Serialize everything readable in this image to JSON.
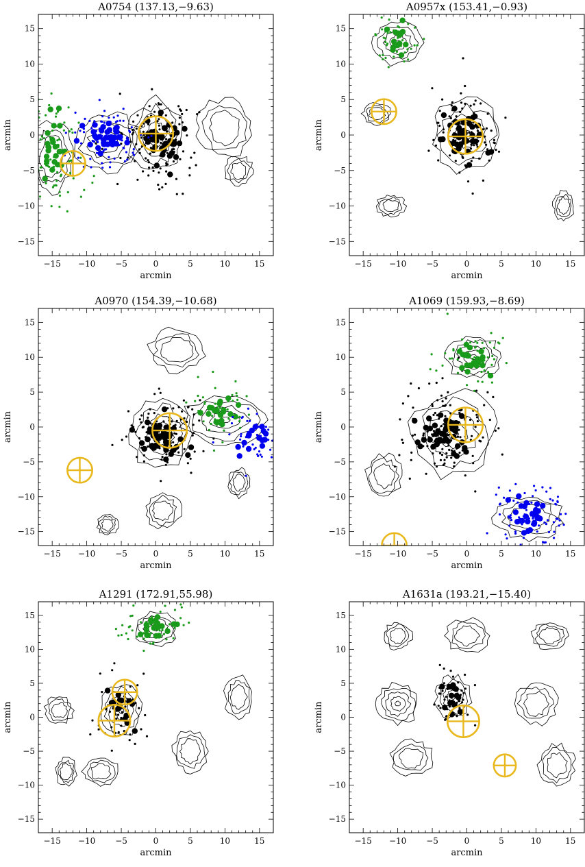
{
  "figure": {
    "x_label": "arcmin",
    "y_label": "arcmin",
    "colors": {
      "main": "#000000",
      "green": "#1a9a1a",
      "blue": "#0000ee",
      "marker": "#e8b81c",
      "contour": "#000000"
    }
  },
  "chart_data": [
    {
      "type": "scatter",
      "title": "A0754",
      "coords": "(137.13,−9.63)",
      "xlabel": "arcmin",
      "ylabel": "arcmin",
      "xlim": [
        -17,
        17
      ],
      "ylim": [
        -17,
        17
      ],
      "xticks": [
        -15,
        -10,
        -5,
        0,
        5,
        10,
        15
      ],
      "yticks": [
        -15,
        -10,
        -5,
        0,
        5,
        10,
        15
      ],
      "series": [
        {
          "color": "black",
          "center": [
            1,
            -1
          ],
          "spread": [
            3.0,
            3.2
          ],
          "count_small": 120,
          "count_big": 40
        },
        {
          "color": "blue",
          "center": [
            -7,
            -0.5
          ],
          "spread": [
            2.5,
            2.0
          ],
          "count_small": 90,
          "count_big": 35
        },
        {
          "color": "green",
          "center": [
            -15,
            -3
          ],
          "spread": [
            2.0,
            4.0
          ],
          "count_small": 80,
          "count_big": 25
        }
      ],
      "markers": [
        {
          "x": 0,
          "y": 0.2,
          "r": 2.5
        },
        {
          "x": -12,
          "y": -4,
          "r": 1.8
        }
      ],
      "contour_blobs": [
        {
          "x": 0,
          "y": 0,
          "rx": 4,
          "ry": 5
        },
        {
          "x": -7,
          "y": -1,
          "rx": 5,
          "ry": 4
        },
        {
          "x": -15,
          "y": -3,
          "rx": 3,
          "ry": 5
        },
        {
          "x": 10,
          "y": 1,
          "rx": 4,
          "ry": 4
        },
        {
          "x": 12,
          "y": -5,
          "rx": 2,
          "ry": 2
        }
      ]
    },
    {
      "type": "scatter",
      "title": "A0957x",
      "coords": "(153.41,−0.93)",
      "xlabel": "arcmin",
      "ylabel": "arcmin",
      "xlim": [
        -17,
        17
      ],
      "ylim": [
        -17,
        17
      ],
      "xticks": [
        -15,
        -10,
        -5,
        0,
        5,
        10,
        15
      ],
      "yticks": [
        -15,
        -10,
        -5,
        0,
        5,
        10,
        15
      ],
      "series": [
        {
          "color": "black",
          "center": [
            0,
            0
          ],
          "spread": [
            2.8,
            3.0
          ],
          "count_small": 110,
          "count_big": 40
        },
        {
          "color": "green",
          "center": [
            -10,
            13
          ],
          "spread": [
            2.0,
            2.0
          ],
          "count_small": 45,
          "count_big": 15
        }
      ],
      "markers": [
        {
          "x": -0.2,
          "y": -0.2,
          "r": 2.5
        },
        {
          "x": -12,
          "y": 3.3,
          "r": 1.8
        }
      ],
      "contour_blobs": [
        {
          "x": 0,
          "y": 0,
          "rx": 5,
          "ry": 5
        },
        {
          "x": -10,
          "y": 13,
          "rx": 3.5,
          "ry": 3
        },
        {
          "x": -13,
          "y": 3,
          "rx": 2,
          "ry": 1.5
        },
        {
          "x": -11,
          "y": -10,
          "rx": 2,
          "ry": 1.5
        },
        {
          "x": 14,
          "y": -10,
          "rx": 1.5,
          "ry": 2
        }
      ]
    },
    {
      "type": "scatter",
      "title": "A0970",
      "coords": "(154.39,−10.68)",
      "xlabel": "arcmin",
      "ylabel": "arcmin",
      "xlim": [
        -17,
        17
      ],
      "ylim": [
        -17,
        17
      ],
      "xticks": [
        -15,
        -10,
        -5,
        0,
        5,
        10,
        15
      ],
      "yticks": [
        -15,
        -10,
        -5,
        0,
        5,
        10,
        15
      ],
      "series": [
        {
          "color": "black",
          "center": [
            1,
            -1
          ],
          "spread": [
            2.8,
            2.8
          ],
          "count_small": 110,
          "count_big": 45
        },
        {
          "color": "green",
          "center": [
            9,
            2
          ],
          "spread": [
            2.5,
            2.0
          ],
          "count_small": 50,
          "count_big": 20
        },
        {
          "color": "blue",
          "center": [
            14,
            -1.5
          ],
          "spread": [
            2.0,
            2.0
          ],
          "count_small": 45,
          "count_big": 15
        }
      ],
      "markers": [
        {
          "x": 2,
          "y": -0.5,
          "r": 2.5
        },
        {
          "x": -11,
          "y": -6.2,
          "r": 1.8
        }
      ],
      "contour_blobs": [
        {
          "x": 1,
          "y": -1,
          "rx": 4.5,
          "ry": 5
        },
        {
          "x": 10,
          "y": 1,
          "rx": 6,
          "ry": 3.5
        },
        {
          "x": 3,
          "y": 11,
          "rx": 4,
          "ry": 3
        },
        {
          "x": 1,
          "y": -12,
          "rx": 2.5,
          "ry": 2.5
        },
        {
          "x": -7,
          "y": -14,
          "rx": 1.5,
          "ry": 1.5
        },
        {
          "x": 12,
          "y": -8,
          "rx": 1.5,
          "ry": 2
        }
      ]
    },
    {
      "type": "scatter",
      "title": "A1069",
      "coords": "(159.93,−8.69)",
      "xlabel": "arcmin",
      "ylabel": "arcmin",
      "xlim": [
        -17,
        17
      ],
      "ylim": [
        -17,
        17
      ],
      "xticks": [
        -15,
        -10,
        -5,
        0,
        5,
        10,
        15
      ],
      "yticks": [
        -15,
        -10,
        -5,
        0,
        5,
        10,
        15
      ],
      "series": [
        {
          "color": "black",
          "center": [
            -3,
            -1
          ],
          "spread": [
            3.0,
            3.0
          ],
          "count_small": 140,
          "count_big": 45
        },
        {
          "color": "green",
          "center": [
            1,
            9.5
          ],
          "spread": [
            2.5,
            2.0
          ],
          "count_small": 60,
          "count_big": 25
        },
        {
          "color": "blue",
          "center": [
            9,
            -13
          ],
          "spread": [
            3.0,
            2.2
          ],
          "count_small": 80,
          "count_big": 25
        }
      ],
      "markers": [
        {
          "x": -0.2,
          "y": 0.3,
          "r": 2.5
        },
        {
          "x": -10.5,
          "y": -17,
          "r": 1.8
        }
      ],
      "contour_blobs": [
        {
          "x": -2,
          "y": -1,
          "rx": 6,
          "ry": 6
        },
        {
          "x": 1,
          "y": 10,
          "rx": 4,
          "ry": 3
        },
        {
          "x": 9,
          "y": -13,
          "rx": 5,
          "ry": 3
        },
        {
          "x": -12,
          "y": -7,
          "rx": 2.5,
          "ry": 3
        }
      ]
    },
    {
      "type": "scatter",
      "title": "A1291",
      "coords": "(172.91,55.98)",
      "xlabel": "arcmin",
      "ylabel": "arcmin",
      "xlim": [
        -17,
        17
      ],
      "ylim": [
        -17,
        17
      ],
      "xticks": [
        -15,
        -10,
        -5,
        0,
        5,
        10,
        15
      ],
      "yticks": [
        -15,
        -10,
        -5,
        0,
        5,
        10,
        15
      ],
      "series": [
        {
          "color": "black",
          "center": [
            -5,
            1
          ],
          "spread": [
            2.0,
            3.0
          ],
          "count_small": 55,
          "count_big": 15
        },
        {
          "color": "green",
          "center": [
            0,
            13.5
          ],
          "spread": [
            2.5,
            1.5
          ],
          "count_small": 55,
          "count_big": 20
        }
      ],
      "markers": [
        {
          "x": -4.5,
          "y": 3.7,
          "r": 1.8
        },
        {
          "x": -6,
          "y": -0.5,
          "r": 2.3
        }
      ],
      "contour_blobs": [
        {
          "x": -5,
          "y": 1,
          "rx": 3,
          "ry": 4
        },
        {
          "x": 0,
          "y": 13,
          "rx": 3,
          "ry": 2.5
        },
        {
          "x": -14,
          "y": 1,
          "rx": 2,
          "ry": 2
        },
        {
          "x": -8,
          "y": -8,
          "rx": 2.5,
          "ry": 2
        },
        {
          "x": 5,
          "y": -5,
          "rx": 2.5,
          "ry": 3
        },
        {
          "x": 12,
          "y": 3,
          "rx": 2,
          "ry": 3
        },
        {
          "x": -13,
          "y": -8,
          "rx": 1.5,
          "ry": 2
        }
      ]
    },
    {
      "type": "scatter",
      "title": "A1631a",
      "coords": "(193.21,−15.40)",
      "xlabel": "arcmin",
      "ylabel": "arcmin",
      "xlim": [
        -17,
        17
      ],
      "ylim": [
        -17,
        17
      ],
      "xticks": [
        -15,
        -10,
        -5,
        0,
        5,
        10,
        15
      ],
      "yticks": [
        -15,
        -10,
        -5,
        0,
        5,
        10,
        15
      ],
      "series": [
        {
          "color": "black",
          "center": [
            -2,
            3
          ],
          "spread": [
            1.5,
            2.0
          ],
          "count_small": 45,
          "count_big": 15
        }
      ],
      "markers": [
        {
          "x": -0.5,
          "y": -0.6,
          "r": 2.3
        },
        {
          "x": 5.5,
          "y": -7.1,
          "r": 1.6
        }
      ],
      "contour_blobs": [
        {
          "x": -2,
          "y": 3,
          "rx": 2.5,
          "ry": 3
        },
        {
          "x": -10,
          "y": 2,
          "rx": 3,
          "ry": 3
        },
        {
          "x": 10,
          "y": 2,
          "rx": 3,
          "ry": 3
        },
        {
          "x": -8,
          "y": -6,
          "rx": 3,
          "ry": 2.5
        },
        {
          "x": 13,
          "y": -7,
          "rx": 2.5,
          "ry": 3
        },
        {
          "x": 0,
          "y": 12,
          "rx": 3,
          "ry": 2.5
        },
        {
          "x": -10,
          "y": 12,
          "rx": 2,
          "ry": 2
        },
        {
          "x": 12,
          "y": 12,
          "rx": 2.5,
          "ry": 2
        }
      ]
    }
  ]
}
